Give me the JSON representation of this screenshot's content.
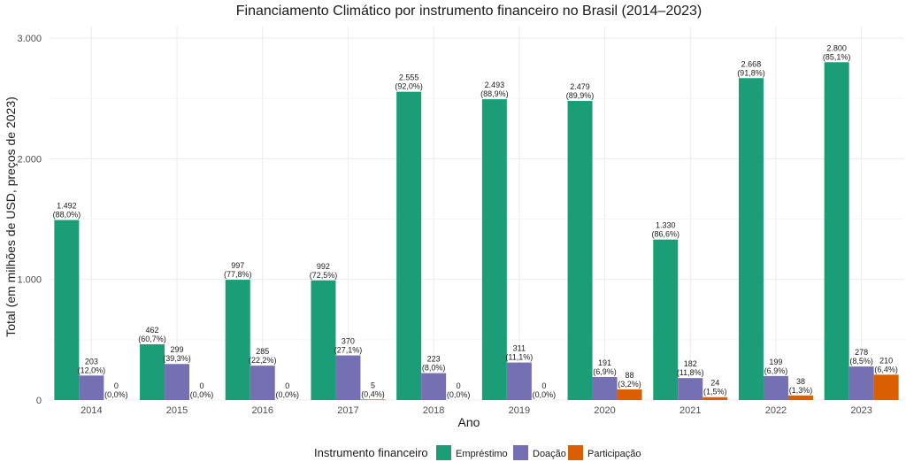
{
  "chart_data": {
    "type": "bar",
    "title": "Financiamento Climático por instrumento financeiro no Brasil (2014–2023)",
    "xlabel": "Ano",
    "ylabel": "Total (em milhões de USD, preços de 2023)",
    "ylim": [
      0,
      3000
    ],
    "yticks": [
      0,
      1000,
      2000,
      3000
    ],
    "ytick_labels": [
      "0",
      "1.000",
      "2.000",
      "3.000"
    ],
    "grid": true,
    "legend_title": "Instrumento financeiro",
    "legend_position": "bottom",
    "categories": [
      "2014",
      "2015",
      "2016",
      "2017",
      "2018",
      "2019",
      "2020",
      "2021",
      "2022",
      "2023"
    ],
    "series": [
      {
        "name": "Empréstimo",
        "color": "#1b9e77",
        "values": [
          1492,
          462,
          997,
          992,
          2555,
          2493,
          2479,
          1330,
          2668,
          2800
        ],
        "labels": [
          "1.492",
          "462",
          "997",
          "992",
          "2.555",
          "2.493",
          "2.479",
          "1.330",
          "2.668",
          "2.800"
        ],
        "percents": [
          "(88,0%)",
          "(60,7%)",
          "(77,8%)",
          "(72,5%)",
          "(92,0%)",
          "(88,9%)",
          "(89,9%)",
          "(86,6%)",
          "(91,8%)",
          "(85,1%)"
        ]
      },
      {
        "name": "Doação",
        "color": "#7570b3",
        "values": [
          203,
          299,
          285,
          370,
          223,
          311,
          191,
          182,
          199,
          278
        ],
        "labels": [
          "203",
          "299",
          "285",
          "370",
          "223",
          "311",
          "191",
          "182",
          "199",
          "278"
        ],
        "percents": [
          "(12,0%)",
          "(39,3%)",
          "(22,2%)",
          "(27,1%)",
          "(8,0%)",
          "(11,1%)",
          "(6,9%)",
          "(11,8%)",
          "(6,9%)",
          "(8,5%)"
        ]
      },
      {
        "name": "Participação",
        "color": "#d95f02",
        "values": [
          0,
          0,
          0,
          5,
          0,
          0,
          88,
          24,
          38,
          210
        ],
        "labels": [
          "0",
          "0",
          "0",
          "5",
          "0",
          "0",
          "88",
          "24",
          "38",
          "210"
        ],
        "percents": [
          "(0,0%)",
          "(0,0%)",
          "(0,0%)",
          "(0,4%)",
          "(0,0%)",
          "(0,0%)",
          "(3,2%)",
          "(1,5%)",
          "(1,3%)",
          "(6,4%)"
        ]
      }
    ]
  }
}
